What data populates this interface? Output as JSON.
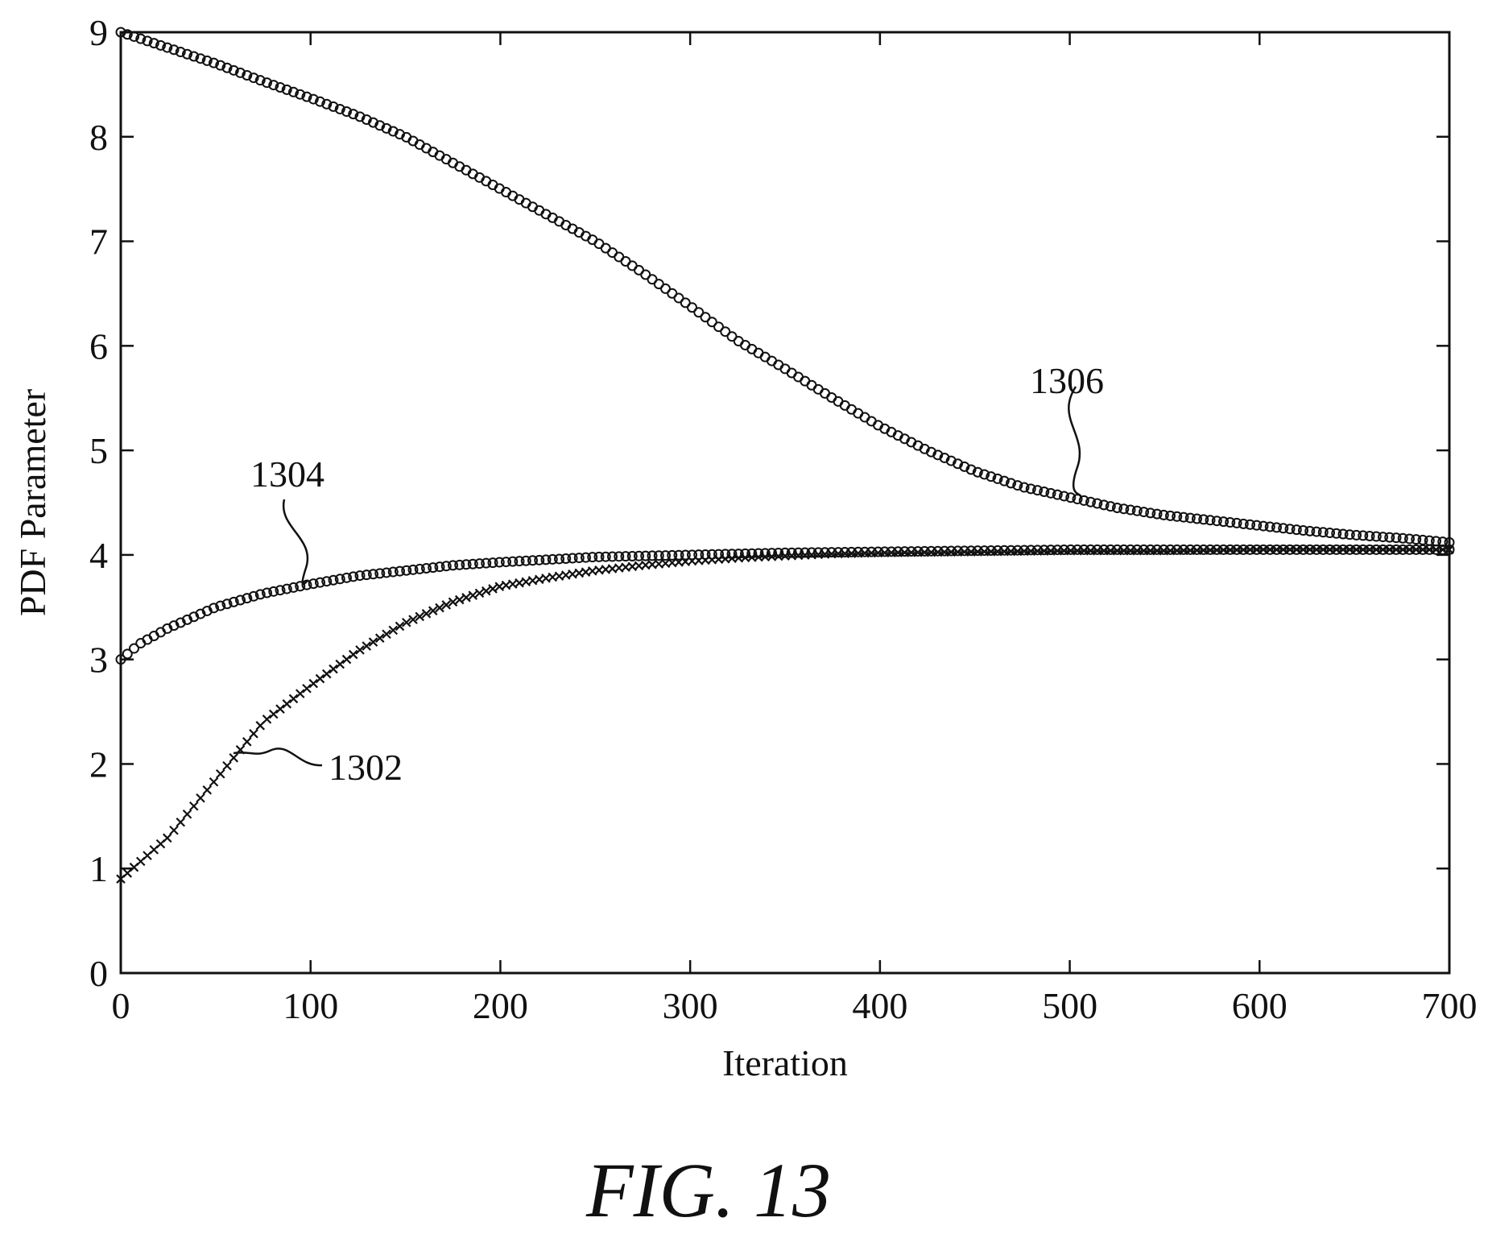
{
  "chart_data": {
    "type": "scatter",
    "title": "",
    "xlabel": "Iteration",
    "ylabel": "PDF Parameter",
    "xlim": [
      0,
      700
    ],
    "ylim": [
      0,
      9
    ],
    "xticks": [
      "0",
      "100",
      "200",
      "300",
      "400",
      "500",
      "600",
      "700"
    ],
    "yticks": [
      "0",
      "1",
      "2",
      "3",
      "4",
      "5",
      "6",
      "7",
      "8",
      "9"
    ],
    "grid": false,
    "legend": "none",
    "series": [
      {
        "marker": "circle",
        "x": [
          0,
          25,
          50,
          75,
          100,
          125,
          150,
          175,
          200,
          225,
          250,
          275,
          300,
          325,
          350,
          375,
          400,
          425,
          450,
          475,
          500,
          525,
          550,
          575,
          600,
          625,
          650,
          675,
          700
        ],
        "y": [
          9.0,
          8.85,
          8.7,
          8.53,
          8.37,
          8.2,
          8.0,
          7.75,
          7.5,
          7.25,
          7.0,
          6.7,
          6.38,
          6.05,
          5.78,
          5.5,
          5.23,
          5.0,
          4.8,
          4.65,
          4.55,
          4.45,
          4.38,
          4.33,
          4.28,
          4.23,
          4.19,
          4.16,
          4.12
        ]
      },
      {
        "marker": "circle",
        "x": [
          0,
          10,
          25,
          50,
          75,
          100,
          125,
          150,
          175,
          200,
          250,
          300,
          350,
          400,
          450,
          500,
          550,
          600,
          650,
          700
        ],
        "y": [
          3.0,
          3.15,
          3.3,
          3.5,
          3.63,
          3.72,
          3.8,
          3.85,
          3.9,
          3.93,
          3.98,
          4.0,
          4.02,
          4.03,
          4.04,
          4.05,
          4.05,
          4.05,
          4.05,
          4.05
        ]
      },
      {
        "marker": "cross",
        "x": [
          0,
          25,
          50,
          75,
          100,
          125,
          150,
          175,
          200,
          225,
          250,
          275,
          300,
          325,
          350,
          375,
          400,
          450,
          500,
          550,
          600,
          650,
          700
        ],
        "y": [
          0.9,
          1.3,
          1.85,
          2.4,
          2.75,
          3.08,
          3.35,
          3.55,
          3.7,
          3.78,
          3.85,
          3.9,
          3.94,
          3.97,
          3.99,
          4.01,
          4.02,
          4.03,
          4.04,
          4.04,
          4.05,
          4.05,
          4.05
        ]
      }
    ],
    "annotations": [
      {
        "text": "1306",
        "x_data": 508,
        "y_data": 4.5
      },
      {
        "text": "1304",
        "x_data": 100,
        "y_data": 3.72
      },
      {
        "text": "1302",
        "x_data": 60,
        "y_data": 2.1
      }
    ]
  },
  "caption": "FIG. 13"
}
